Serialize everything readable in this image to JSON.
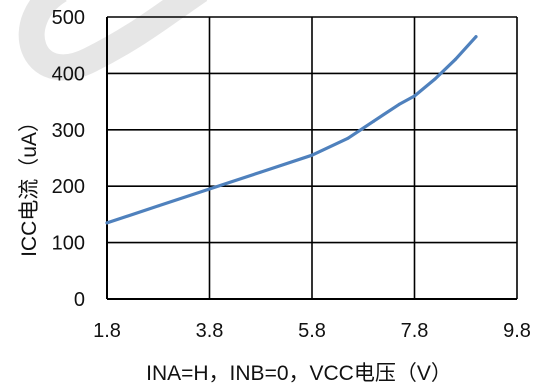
{
  "chart_data": {
    "type": "line",
    "title": "",
    "xlabel": "INA=H，INB=0，VCC电压（V）",
    "ylabel": "ICC电流（uA）",
    "xlim": [
      1.8,
      9.8
    ],
    "ylim": [
      0,
      500
    ],
    "x_ticks": [
      "1.8",
      "3.8",
      "5.8",
      "7.8",
      "9.8"
    ],
    "y_ticks": [
      "0",
      "100",
      "200",
      "300",
      "400",
      "500"
    ],
    "grid": true,
    "legend": "none",
    "colors": {
      "line": "#4f81bd",
      "grid": "#000000"
    },
    "series": [
      {
        "x": [
          1.8,
          2.8,
          3.8,
          4.8,
          5.8,
          6.5,
          7.0,
          7.5,
          7.8,
          8.2,
          8.6,
          9.0
        ],
        "y": [
          135,
          165,
          195,
          225,
          255,
          285,
          315,
          345,
          360,
          390,
          425,
          465
        ]
      }
    ]
  }
}
